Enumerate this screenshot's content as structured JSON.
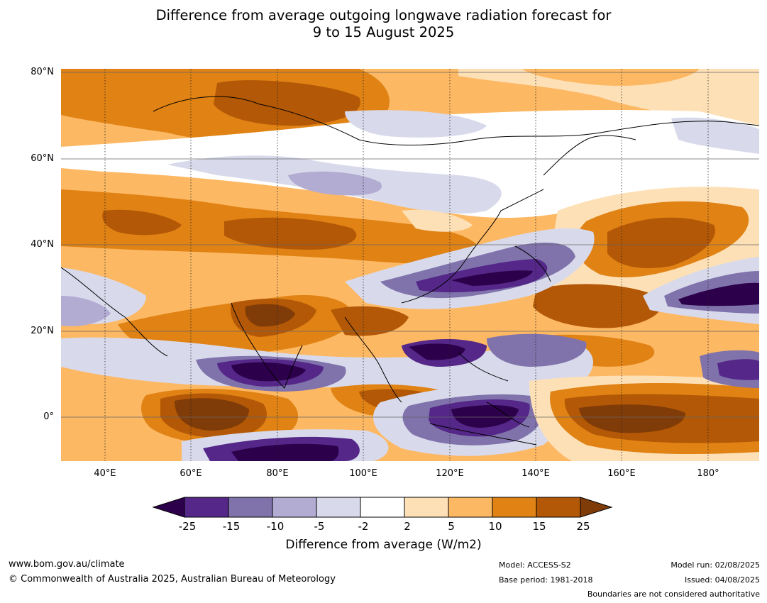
{
  "title_line1": "Difference from average outgoing longwave radiation forecast for",
  "title_line2": "9 to 15 August 2025",
  "lat_labels": [
    "80°N",
    "60°N",
    "40°N",
    "20°N",
    "0°"
  ],
  "lon_labels": [
    "40°E",
    "60°E",
    "80°E",
    "100°E",
    "120°E",
    "140°E",
    "160°E",
    "180°"
  ],
  "colorbar": {
    "colors": [
      "#2d004b",
      "#542788",
      "#8073ac",
      "#b2abd2",
      "#d8daeb",
      "#ffffff",
      "#fee0b6",
      "#fdb863",
      "#e08214",
      "#b35806",
      "#7f3b08"
    ],
    "tick_labels": [
      "-25",
      "-15",
      "-10",
      "-5",
      "-2",
      "2",
      "5",
      "10",
      "15",
      "25"
    ],
    "title": "Difference from average (W/m2)"
  },
  "footer": {
    "url": "www.bom.gov.au/climate",
    "copyright": "© Commonwealth of Australia 2025, Australian Bureau of Meteorology",
    "model": "Model: ACCESS-S2",
    "base_period": "Base period: 1981-2018",
    "model_run": "Model run: 02/08/2025",
    "issued": "Issued: 04/08/2025",
    "boundaries_note": "Boundaries are not considered authoritative"
  }
}
